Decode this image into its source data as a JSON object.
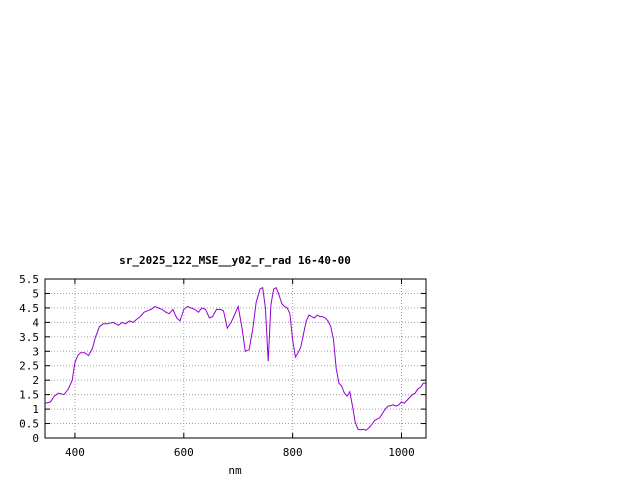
{
  "chart_data": {
    "type": "line",
    "title": "sr_2025_122_MSE__y02_r_rad 16-40-00",
    "xlabel": "nm",
    "ylabel": "",
    "xlim": [
      345,
      1045
    ],
    "ylim": [
      0,
      5.5
    ],
    "xticks": [
      400,
      600,
      800,
      1000
    ],
    "xtick_labels": [
      "400",
      "600",
      "800",
      "1000"
    ],
    "yticks": [
      0,
      0.5,
      1,
      1.5,
      2,
      2.5,
      3,
      3.5,
      4,
      4.5,
      5,
      5.5
    ],
    "ytick_labels": [
      "0",
      "0.5",
      "1",
      "1.5",
      "2",
      "2.5",
      "3",
      "3.5",
      "4",
      "4.5",
      "5",
      "5.5"
    ],
    "grid": true,
    "line_color": "#9400d3",
    "series": [
      {
        "x": [
          345,
          355,
          362,
          370,
          380,
          388,
          395,
          400,
          405,
          410,
          418,
          425,
          432,
          438,
          445,
          452,
          460,
          470,
          480,
          487,
          493,
          500,
          507,
          513,
          520,
          527,
          533,
          540,
          547,
          553,
          560,
          567,
          573,
          580,
          587,
          593,
          600,
          607,
          613,
          620,
          627,
          633,
          640,
          647,
          653,
          660,
          667,
          673,
          680,
          687,
          693,
          700,
          707,
          713,
          720,
          727,
          733,
          740,
          745,
          750,
          755,
          760,
          765,
          770,
          775,
          780,
          785,
          790,
          795,
          800,
          805,
          810,
          815,
          820,
          825,
          830,
          835,
          840,
          845,
          850,
          855,
          860,
          865,
          870,
          875,
          880,
          885,
          890,
          895,
          900,
          905,
          910,
          915,
          920,
          925,
          930,
          935,
          940,
          945,
          950,
          955,
          960,
          965,
          970,
          975,
          980,
          985,
          990,
          995,
          1000,
          1005,
          1010,
          1015,
          1020,
          1025,
          1030,
          1035,
          1040,
          1045
        ],
        "y": [
          1.2,
          1.25,
          1.45,
          1.55,
          1.5,
          1.7,
          2.0,
          2.6,
          2.85,
          2.95,
          2.95,
          2.85,
          3.1,
          3.5,
          3.85,
          3.95,
          3.95,
          4.0,
          3.9,
          4.0,
          3.95,
          4.05,
          4.0,
          4.1,
          4.2,
          4.35,
          4.4,
          4.45,
          4.55,
          4.5,
          4.45,
          4.35,
          4.3,
          4.45,
          4.15,
          4.05,
          4.45,
          4.55,
          4.5,
          4.45,
          4.35,
          4.5,
          4.45,
          4.15,
          4.2,
          4.45,
          4.45,
          4.4,
          3.8,
          4.0,
          4.25,
          4.55,
          3.8,
          3.0,
          3.05,
          3.8,
          4.7,
          5.15,
          5.2,
          4.5,
          2.65,
          4.6,
          5.15,
          5.2,
          4.95,
          4.65,
          4.55,
          4.5,
          4.3,
          3.4,
          2.8,
          2.95,
          3.15,
          3.6,
          4.05,
          4.25,
          4.2,
          4.15,
          4.25,
          4.2,
          4.2,
          4.15,
          4.05,
          3.85,
          3.4,
          2.4,
          1.9,
          1.8,
          1.55,
          1.45,
          1.6,
          1.1,
          0.55,
          0.3,
          0.28,
          0.3,
          0.27,
          0.35,
          0.45,
          0.6,
          0.65,
          0.7,
          0.85,
          1.0,
          1.1,
          1.12,
          1.15,
          1.1,
          1.15,
          1.25,
          1.2,
          1.3,
          1.4,
          1.5,
          1.55,
          1.7,
          1.75,
          1.9,
          1.9
        ]
      }
    ]
  }
}
